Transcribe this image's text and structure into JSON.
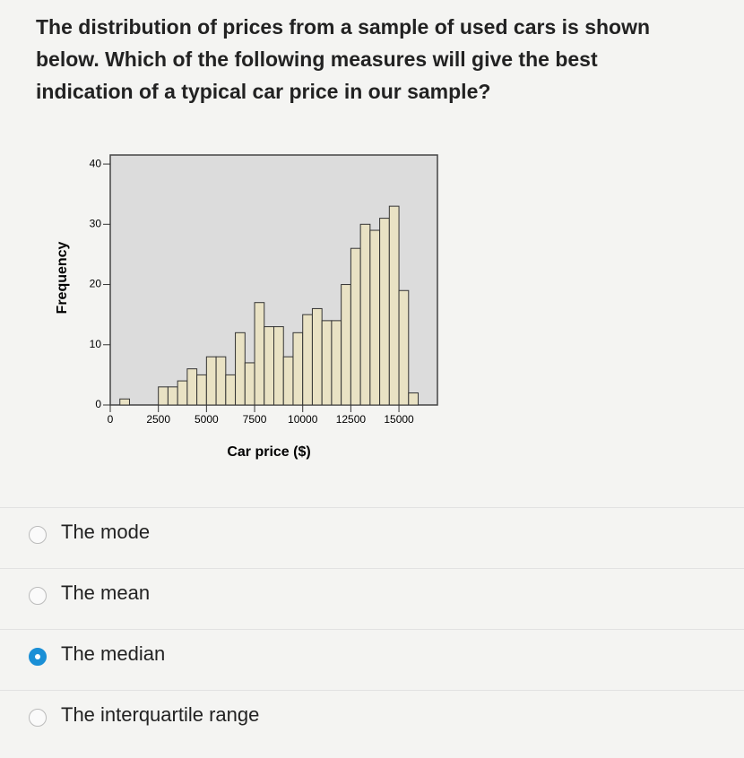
{
  "question": {
    "parts": [
      "The distribution of prices from a sample of used cars is shown below. Which of the following measures will give the ",
      "best",
      " indication of a typical car price in our sample?"
    ]
  },
  "chart_data": {
    "type": "histogram",
    "xlabel": "Car price ($)",
    "ylabel": "Frequency",
    "bins": [
      0,
      500,
      1000,
      1500,
      2000,
      2500,
      3000,
      3500,
      4000,
      4500,
      5000,
      5500,
      6000,
      6500,
      7000,
      7500,
      8000,
      8500,
      9000,
      9500,
      10000,
      10500,
      11000,
      11500,
      12000,
      12500,
      13000,
      13500,
      14000,
      14500,
      15000,
      15500,
      16000,
      16500,
      17000
    ],
    "counts": [
      0,
      1,
      0,
      0,
      0,
      3,
      3,
      4,
      6,
      5,
      8,
      8,
      5,
      12,
      7,
      17,
      13,
      13,
      8,
      12,
      15,
      16,
      14,
      14,
      20,
      26,
      30,
      29,
      31,
      33,
      19,
      2,
      0,
      0
    ],
    "color": "#e9e2c4",
    "edge_color": "#333333",
    "background": "#dcdcdc",
    "xlim": [
      0,
      17000
    ],
    "xticks": [
      0,
      2500,
      5000,
      7500,
      10000,
      12500,
      15000
    ],
    "ylim": [
      0,
      41.5
    ],
    "yticks": [
      0,
      10,
      20,
      30,
      40
    ]
  },
  "options": [
    {
      "label": "The mode",
      "selected": false
    },
    {
      "label": "The mean",
      "selected": false
    },
    {
      "label": "The median",
      "selected": true
    },
    {
      "label": "The interquartile range",
      "selected": false
    }
  ]
}
